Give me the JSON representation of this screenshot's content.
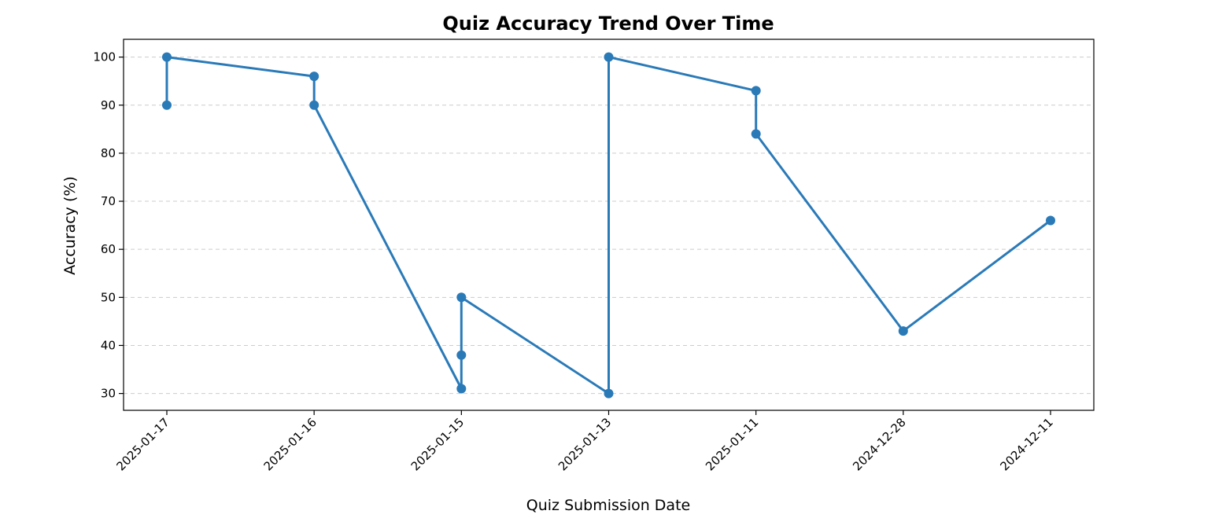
{
  "chart_data": {
    "type": "line",
    "title": "Quiz Accuracy Trend Over Time",
    "xlabel": "Quiz Submission Date",
    "ylabel": "Accuracy (%)",
    "categories": [
      "2025-01-17",
      "2025-01-16",
      "2025-01-15",
      "2025-01-13",
      "2025-01-11",
      "2024-12-28",
      "2024-12-11"
    ],
    "yticks": [
      30,
      40,
      50,
      60,
      70,
      80,
      90,
      100
    ],
    "ylim": [
      26.5,
      103.7
    ],
    "grid": "y-dashed",
    "legend": "none",
    "series": [
      {
        "points": [
          {
            "x": "2025-01-17",
            "y": 90
          },
          {
            "x": "2025-01-17",
            "y": 100
          },
          {
            "x": "2025-01-16",
            "y": 96
          },
          {
            "x": "2025-01-16",
            "y": 90
          },
          {
            "x": "2025-01-15",
            "y": 31
          },
          {
            "x": "2025-01-15",
            "y": 38
          },
          {
            "x": "2025-01-15",
            "y": 50
          },
          {
            "x": "2025-01-13",
            "y": 30
          },
          {
            "x": "2025-01-13",
            "y": 100
          },
          {
            "x": "2025-01-11",
            "y": 93
          },
          {
            "x": "2025-01-11",
            "y": 84
          },
          {
            "x": "2024-12-28",
            "y": 43
          },
          {
            "x": "2024-12-11",
            "y": 66
          }
        ]
      }
    ],
    "colors": {
      "line": "#2a7ab8",
      "grid": "#cccccc",
      "axes": "#000000"
    }
  }
}
